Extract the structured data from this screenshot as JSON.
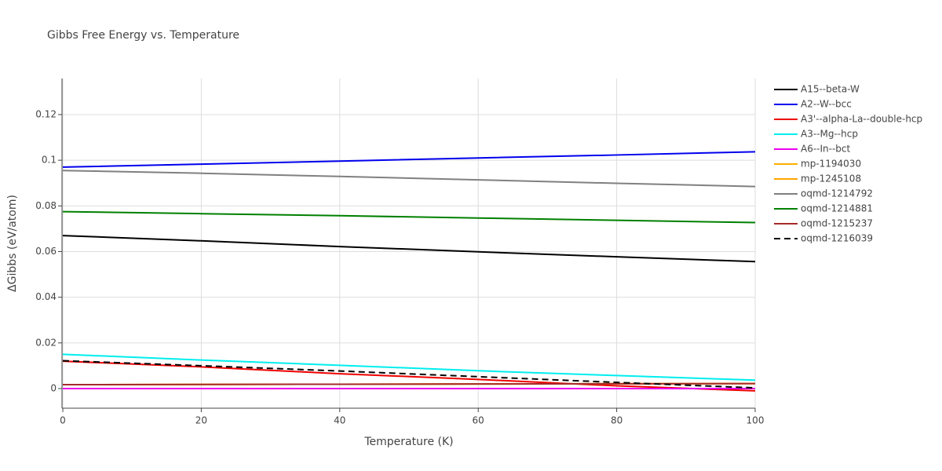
{
  "chart_data": {
    "type": "line",
    "title": "Gibbs Free Energy vs. Temperature",
    "xlabel": "Temperature (K)",
    "ylabel": "ΔGibbs (eV/atom)",
    "x": [
      0,
      20,
      40,
      60,
      80,
      100
    ],
    "xlim": [
      0,
      100
    ],
    "xticks": [
      0,
      20,
      40,
      60,
      80,
      100
    ],
    "ylim": [
      -0.0086,
      0.1358
    ],
    "yticks": [
      0,
      0.02,
      0.04,
      0.06,
      0.08,
      0.1,
      0.12
    ],
    "grid": true,
    "legend": "right",
    "series": [
      {
        "name": "A15--beta-W",
        "color": "#000000",
        "values": [
          0.067,
          0.0647,
          0.0622,
          0.0599,
          0.0577,
          0.0556
        ]
      },
      {
        "name": "A2--W--bcc",
        "color": "#0000ee",
        "values": [
          0.097,
          0.0983,
          0.0996,
          0.101,
          0.1023,
          0.1037
        ]
      },
      {
        "name": "A3'--alpha-La--double-hcp",
        "color": "#ee0000",
        "values": [
          0.012,
          0.0095,
          0.0065,
          0.004,
          0.0012,
          -0.001
        ]
      },
      {
        "name": "A3--Mg--hcp",
        "color": "#00eeee",
        "values": [
          0.015,
          0.0125,
          0.0102,
          0.0078,
          0.0057,
          0.0037
        ]
      },
      {
        "name": "A6--In--bct",
        "color": "#ee00ee",
        "values": [
          0,
          0,
          0,
          0,
          0,
          0
        ]
      },
      {
        "name": "mp-1194030",
        "color": "#ffb000",
        "values": [
          0.0017,
          0.0018,
          0.0019,
          0.002,
          0.0021,
          0.0022
        ]
      },
      {
        "name": "mp-1245108",
        "color": "#ffa500",
        "values": [
          0.0017,
          0.0018,
          0.0019,
          0.002,
          0.0021,
          0.0022
        ]
      },
      {
        "name": "oqmd-1214792",
        "color": "#808080",
        "values": [
          0.0955,
          0.0943,
          0.0929,
          0.0914,
          0.0899,
          0.0885
        ]
      },
      {
        "name": "oqmd-1214881",
        "color": "#008000",
        "values": [
          0.0775,
          0.0766,
          0.0757,
          0.0747,
          0.0737,
          0.0727
        ]
      },
      {
        "name": "oqmd-1215237",
        "color": "#a52a2a",
        "values": [
          0.0017,
          0.0018,
          0.0019,
          0.002,
          0.0021,
          0.0022
        ]
      },
      {
        "name": "oqmd-1216039",
        "color": "#000000",
        "dash": "dash",
        "values": [
          0.0122,
          0.01,
          0.0077,
          0.0052,
          0.0027,
          0.0003
        ]
      }
    ]
  }
}
